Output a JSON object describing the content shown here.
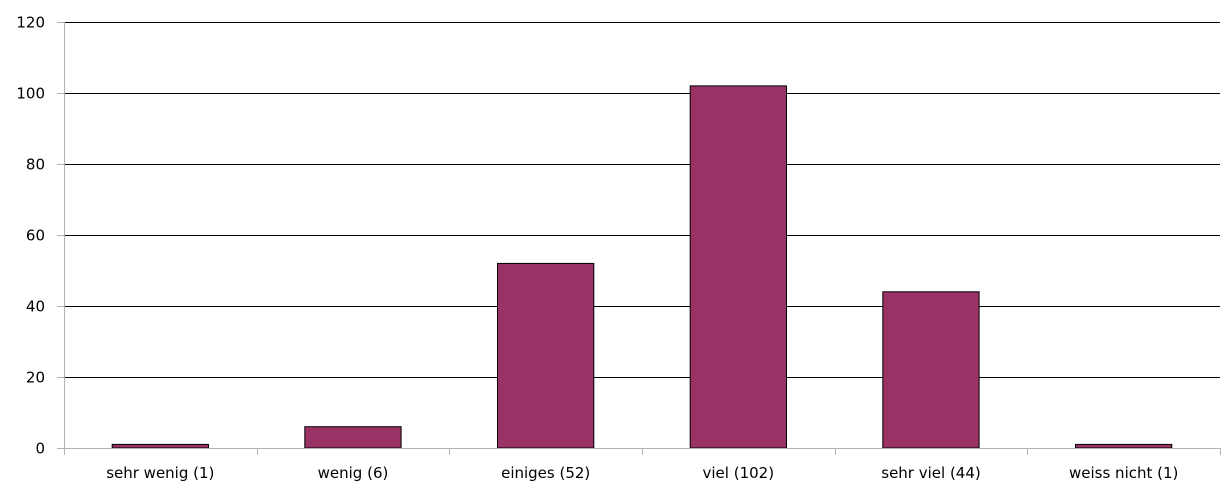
{
  "chart_data": {
    "type": "bar",
    "categories": [
      "sehr wenig (1)",
      "wenig (6)",
      "einiges (52)",
      "viel (102)",
      "sehr viel (44)",
      "weiss nicht (1)"
    ],
    "values": [
      1,
      6,
      52,
      102,
      44,
      1
    ],
    "ylim": [
      0,
      120
    ],
    "yticks": [
      "0",
      "20",
      "40",
      "60",
      "80",
      "100",
      "120"
    ],
    "grid": true,
    "legend": "none",
    "bar_color": "#993366",
    "bar_border_color": "#000000",
    "grid_color": "#000000",
    "axis_color": "#b3b3b3"
  }
}
